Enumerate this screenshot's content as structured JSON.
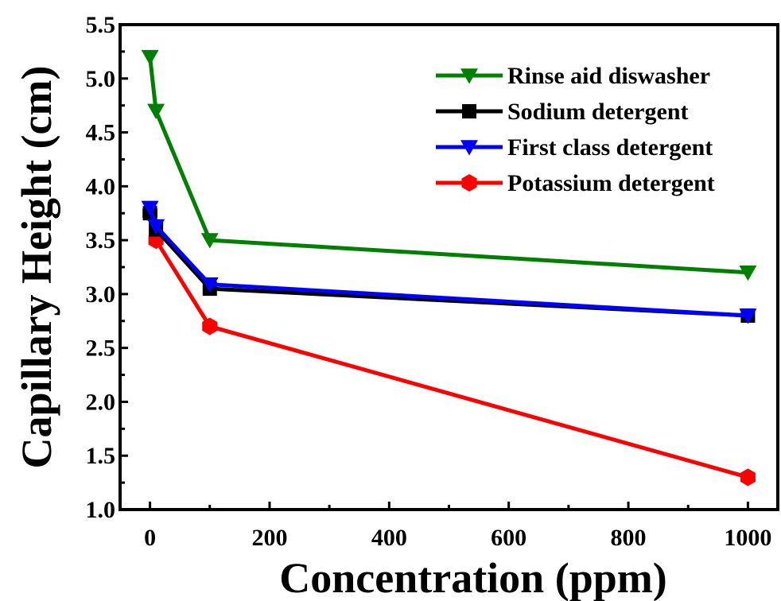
{
  "chart_data": {
    "type": "line",
    "xlabel": "Concentration (ppm)",
    "ylabel": "Capillary Height (cm)",
    "xlim": [
      -50,
      1050
    ],
    "ylim": [
      1.0,
      5.5
    ],
    "x_ticks": [
      0,
      200,
      400,
      600,
      800,
      1000
    ],
    "x_tick_labels": [
      "0",
      "200",
      "400",
      "600",
      "800",
      "1000"
    ],
    "y_ticks": [
      1.0,
      1.5,
      2.0,
      2.5,
      3.0,
      3.5,
      4.0,
      4.5,
      5.0,
      5.5
    ],
    "y_tick_labels": [
      "1.0",
      "1.5",
      "2.0",
      "2.5",
      "3.0",
      "3.5",
      "4.0",
      "4.5",
      "5.0",
      "5.5"
    ],
    "grid": false,
    "legend_position": "top-right",
    "series": [
      {
        "name": "Rinse aid diswasher",
        "color": "#008000",
        "marker": "triangle-down",
        "x": [
          0,
          10,
          100,
          1000
        ],
        "y": [
          5.2,
          4.7,
          3.5,
          3.2
        ]
      },
      {
        "name": "Sodium detergent",
        "color": "#000000",
        "marker": "square",
        "x": [
          0,
          10,
          100,
          1000
        ],
        "y": [
          3.75,
          3.6,
          3.05,
          2.8
        ]
      },
      {
        "name": "First class detergent",
        "color": "#0000ff",
        "marker": "triangle-down",
        "x": [
          0,
          10,
          100,
          1000
        ],
        "y": [
          3.8,
          3.63,
          3.09,
          2.8
        ]
      },
      {
        "name": "Potassium detergent",
        "color": "#ff0000",
        "marker": "hexagon",
        "x": [
          0,
          10,
          100,
          1000
        ],
        "y": [
          3.75,
          3.5,
          2.7,
          1.3
        ]
      }
    ]
  }
}
